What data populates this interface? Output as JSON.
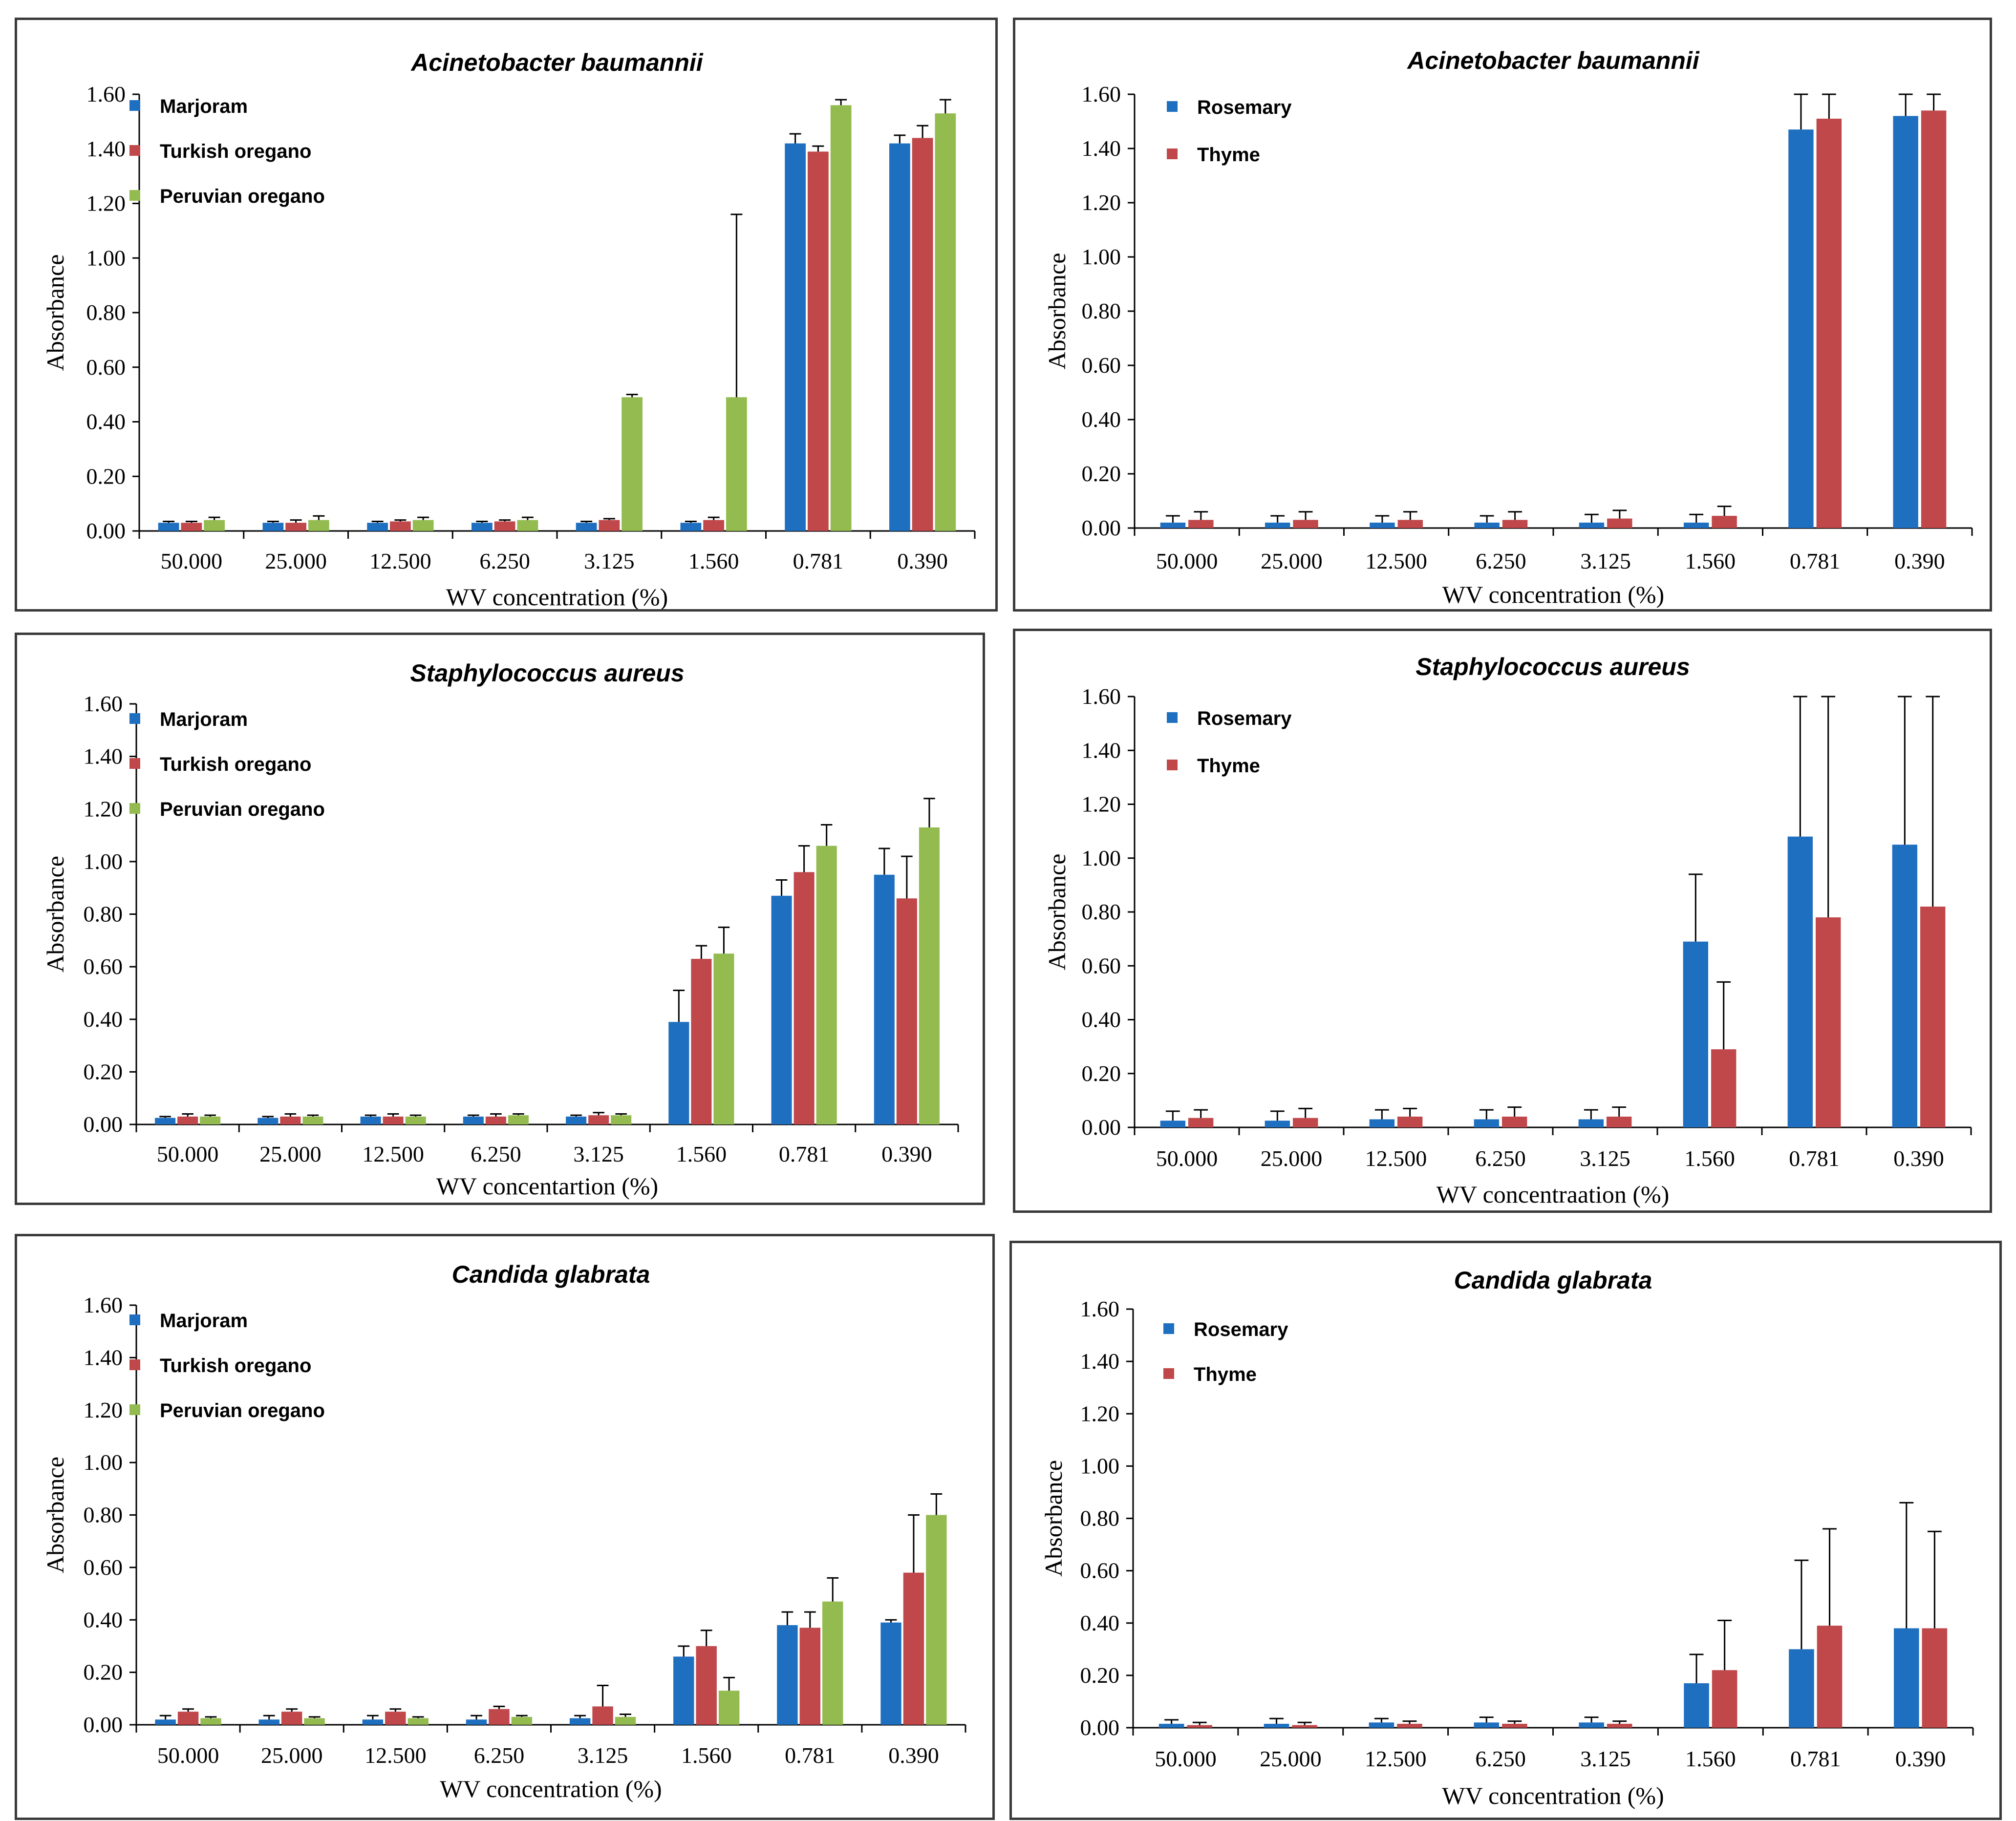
{
  "colors": {
    "marjoram": "#1f6fc0",
    "turkish_oregano": "#c0474a",
    "peruvian_oregano": "#93bb50",
    "rosemary": "#1f6fc0",
    "thyme": "#c0474a",
    "error_bar": "#000000",
    "axis": "#000000"
  },
  "chart_data": [
    {
      "type": "bar",
      "title": "Acinetobacter baumannii",
      "xlabel": "WV concentration (%)",
      "ylabel": "Absorbance",
      "ylim": [
        0,
        1.6
      ],
      "yticks": [
        "0.00",
        "0.20",
        "0.40",
        "0.60",
        "0.80",
        "1.00",
        "1.20",
        "1.40",
        "1.60"
      ],
      "categories": [
        "50.000",
        "25.000",
        "12.500",
        "6.250",
        "3.125",
        "1.560",
        "0.781",
        "0.390"
      ],
      "legend_position": "top-left",
      "series": [
        {
          "name": "Marjoram",
          "color_key": "marjoram",
          "values": [
            0.03,
            0.03,
            0.03,
            0.03,
            0.03,
            0.03,
            1.42,
            1.42
          ],
          "errors": [
            0.005,
            0.005,
            0.005,
            0.005,
            0.005,
            0.005,
            0.035,
            0.03
          ]
        },
        {
          "name": "Turkish oregano",
          "color_key": "turkish_oregano",
          "values": [
            0.03,
            0.03,
            0.035,
            0.035,
            0.04,
            0.04,
            1.39,
            1.44
          ],
          "errors": [
            0.005,
            0.01,
            0.005,
            0.005,
            0.005,
            0.01,
            0.02,
            0.045
          ]
        },
        {
          "name": "Peruvian oregano",
          "color_key": "peruvian_oregano",
          "values": [
            0.04,
            0.04,
            0.04,
            0.04,
            0.49,
            0.49,
            1.56,
            1.53
          ],
          "errors": [
            0.01,
            0.015,
            0.01,
            0.01,
            0.01,
            0.67,
            0.02,
            0.05
          ]
        }
      ]
    },
    {
      "type": "bar",
      "title": "Acinetobacter baumannii",
      "xlabel": "WV concentration (%)",
      "ylabel": "Absorbance",
      "ylim": [
        0,
        1.6
      ],
      "yticks": [
        "0.00",
        "0.20",
        "0.40",
        "0.60",
        "0.80",
        "1.00",
        "1.20",
        "1.40",
        "1.60"
      ],
      "categories": [
        "50.000",
        "25.000",
        "12.500",
        "6.250",
        "3.125",
        "1.560",
        "0.781",
        "0.390"
      ],
      "legend_position": "top-left",
      "series": [
        {
          "name": "Rosemary",
          "color_key": "rosemary",
          "values": [
            0.02,
            0.02,
            0.02,
            0.02,
            0.02,
            0.02,
            1.47,
            1.52
          ],
          "errors": [
            0.025,
            0.025,
            0.025,
            0.025,
            0.03,
            0.03,
            0.13,
            0.08
          ]
        },
        {
          "name": "Thyme",
          "color_key": "thyme",
          "values": [
            0.03,
            0.03,
            0.03,
            0.03,
            0.035,
            0.045,
            1.51,
            1.54
          ],
          "errors": [
            0.03,
            0.03,
            0.03,
            0.03,
            0.03,
            0.035,
            0.09,
            0.06
          ]
        }
      ]
    },
    {
      "type": "bar",
      "title": "Staphylococcus aureus",
      "xlabel": "WV concentartion (%)",
      "ylabel": "Absorbance",
      "ylim": [
        0,
        1.6
      ],
      "yticks": [
        "0.00",
        "0.20",
        "0.40",
        "0.60",
        "0.80",
        "1.00",
        "1.20",
        "1.40",
        "1.60"
      ],
      "categories": [
        "50.000",
        "25.000",
        "12.500",
        "6.250",
        "3.125",
        "1.560",
        "0.781",
        "0.390"
      ],
      "legend_position": "top-left",
      "series": [
        {
          "name": "Marjoram",
          "color_key": "marjoram",
          "values": [
            0.025,
            0.025,
            0.03,
            0.03,
            0.03,
            0.39,
            0.87,
            0.95
          ],
          "errors": [
            0.005,
            0.005,
            0.005,
            0.005,
            0.005,
            0.12,
            0.06,
            0.1
          ]
        },
        {
          "name": "Turkish oregano",
          "color_key": "turkish_oregano",
          "values": [
            0.03,
            0.03,
            0.03,
            0.03,
            0.035,
            0.63,
            0.96,
            0.86
          ],
          "errors": [
            0.01,
            0.01,
            0.01,
            0.01,
            0.01,
            0.05,
            0.1,
            0.16
          ]
        },
        {
          "name": "Peruvian oregano",
          "color_key": "peruvian_oregano",
          "values": [
            0.03,
            0.03,
            0.03,
            0.035,
            0.035,
            0.65,
            1.06,
            1.13
          ],
          "errors": [
            0.005,
            0.005,
            0.005,
            0.005,
            0.005,
            0.1,
            0.08,
            0.11
          ]
        }
      ]
    },
    {
      "type": "bar",
      "title": "Staphylococcus aureus",
      "xlabel": "WV concentraation (%)",
      "ylabel": "Absorbance",
      "ylim": [
        0,
        1.6
      ],
      "yticks": [
        "0.00",
        "0.20",
        "0.40",
        "0.60",
        "0.80",
        "1.00",
        "1.20",
        "1.40",
        "1.60"
      ],
      "categories": [
        "50.000",
        "25.000",
        "12.500",
        "6.250",
        "3.125",
        "1.560",
        "0.781",
        "0.390"
      ],
      "legend_position": "top-left",
      "series": [
        {
          "name": "Rosemary",
          "color_key": "rosemary",
          "values": [
            0.025,
            0.025,
            0.03,
            0.03,
            0.03,
            0.69,
            1.08,
            1.05
          ],
          "errors": [
            0.035,
            0.035,
            0.035,
            0.035,
            0.035,
            0.25,
            0.52,
            0.55
          ]
        },
        {
          "name": "Thyme",
          "color_key": "thyme",
          "values": [
            0.035,
            0.035,
            0.04,
            0.04,
            0.04,
            0.29,
            0.78,
            0.82
          ],
          "errors": [
            0.03,
            0.035,
            0.03,
            0.035,
            0.035,
            0.25,
            0.82,
            0.78
          ]
        }
      ]
    },
    {
      "type": "bar",
      "title": "Candida glabrata",
      "xlabel": "WV concentration (%)",
      "ylabel": "Absorbance",
      "ylim": [
        0,
        1.6
      ],
      "yticks": [
        "0.00",
        "0.20",
        "0.40",
        "0.60",
        "0.80",
        "1.00",
        "1.20",
        "1.40",
        "1.60"
      ],
      "categories": [
        "50.000",
        "25.000",
        "12.500",
        "6.250",
        "3.125",
        "1.560",
        "0.781",
        "0.390"
      ],
      "legend_position": "top-left",
      "series": [
        {
          "name": "Marjoram",
          "color_key": "marjoram",
          "values": [
            0.02,
            0.02,
            0.02,
            0.02,
            0.025,
            0.26,
            0.38,
            0.39
          ],
          "errors": [
            0.015,
            0.015,
            0.015,
            0.015,
            0.01,
            0.04,
            0.05,
            0.01
          ]
        },
        {
          "name": "Turkish oregano",
          "color_key": "turkish_oregano",
          "values": [
            0.05,
            0.05,
            0.05,
            0.06,
            0.07,
            0.3,
            0.37,
            0.58
          ],
          "errors": [
            0.01,
            0.01,
            0.01,
            0.01,
            0.08,
            0.06,
            0.06,
            0.22
          ]
        },
        {
          "name": "Peruvian oregano",
          "color_key": "peruvian_oregano",
          "values": [
            0.025,
            0.025,
            0.025,
            0.03,
            0.03,
            0.13,
            0.47,
            0.8
          ],
          "errors": [
            0.005,
            0.005,
            0.005,
            0.005,
            0.01,
            0.05,
            0.09,
            0.08
          ]
        }
      ]
    },
    {
      "type": "bar",
      "title": "Candida glabrata",
      "xlabel": "WV concentration (%)",
      "ylabel": "Absorbance",
      "ylim": [
        0,
        1.6
      ],
      "yticks": [
        "0.00",
        "0.20",
        "0.40",
        "0.60",
        "0.80",
        "1.00",
        "1.20",
        "1.40",
        "1.60"
      ],
      "categories": [
        "50.000",
        "25.000",
        "12.500",
        "6.250",
        "3.125",
        "1.560",
        "0.781",
        "0.390"
      ],
      "legend_position": "top-left",
      "series": [
        {
          "name": "Rosemary",
          "color_key": "rosemary",
          "values": [
            0.015,
            0.015,
            0.02,
            0.02,
            0.02,
            0.17,
            0.3,
            0.38
          ],
          "errors": [
            0.015,
            0.02,
            0.015,
            0.02,
            0.02,
            0.11,
            0.34,
            0.48
          ]
        },
        {
          "name": "Thyme",
          "color_key": "thyme",
          "values": [
            0.01,
            0.01,
            0.015,
            0.015,
            0.015,
            0.22,
            0.39,
            0.38
          ],
          "errors": [
            0.01,
            0.01,
            0.01,
            0.01,
            0.01,
            0.19,
            0.37,
            0.37
          ]
        }
      ]
    }
  ]
}
